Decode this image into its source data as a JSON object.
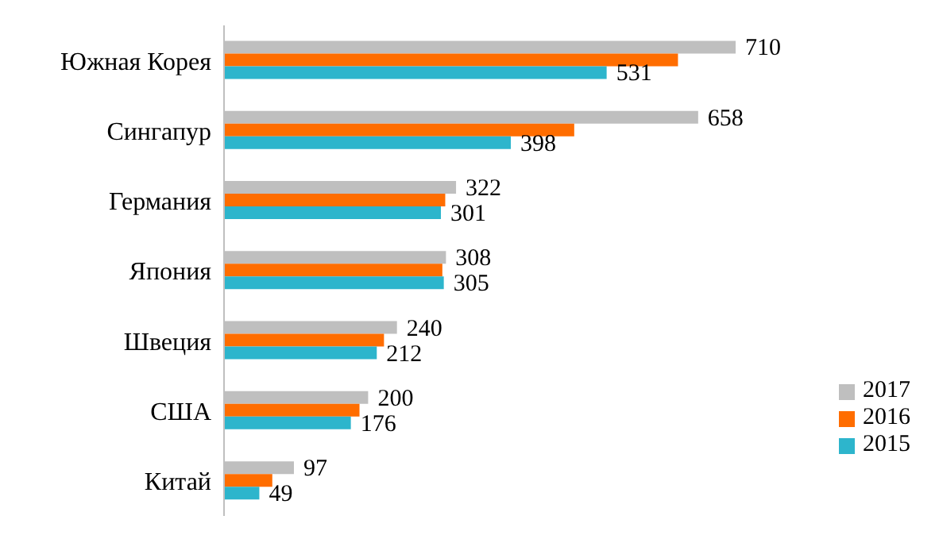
{
  "chart_data": {
    "type": "bar",
    "orientation": "horizontal",
    "categories": [
      "Южная Корея",
      "Сингапур",
      "Германия",
      "Япония",
      "Швеция",
      "США",
      "Китай"
    ],
    "series": [
      {
        "name": "2017",
        "color": "#bfbfbf",
        "values": [
          710,
          658,
          322,
          308,
          240,
          200,
          97
        ],
        "value_labels": [
          "710",
          "658",
          "322",
          "308",
          "240",
          "200",
          "97"
        ]
      },
      {
        "name": "2016",
        "color": "#ff6d00",
        "values": [
          630,
          486,
          307,
          303,
          222,
          188,
          67
        ],
        "value_labels": [
          null,
          null,
          null,
          null,
          null,
          null,
          null
        ]
      },
      {
        "name": "2015",
        "color": "#2db5cc",
        "values": [
          531,
          398,
          301,
          305,
          212,
          176,
          49
        ],
        "value_labels": [
          "531",
          "398",
          "301",
          "305",
          "212",
          "176",
          "49"
        ]
      }
    ],
    "legend": "bottom right"
  }
}
